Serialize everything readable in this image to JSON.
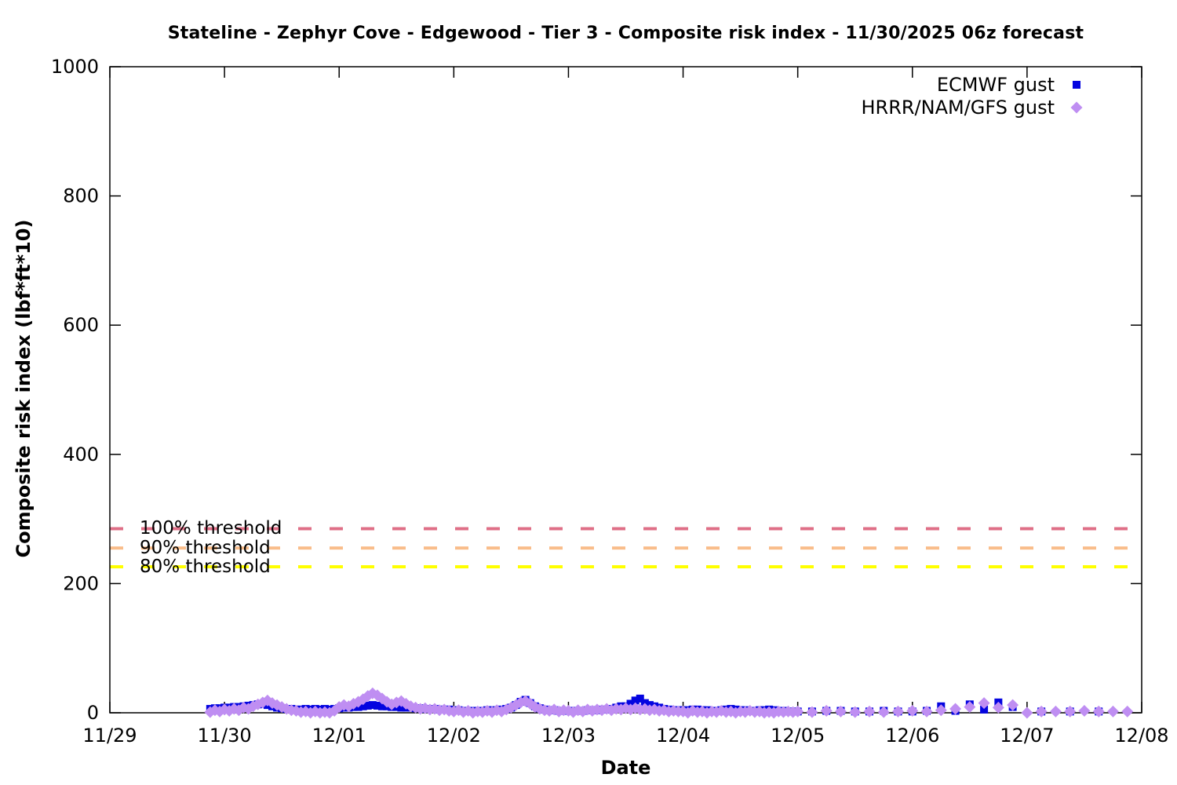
{
  "chart_data": {
    "type": "scatter",
    "title": "Stateline - Zephyr Cove - Edgewood - Tier 3 - Composite risk index - 11/30/2025 06z forecast",
    "xlabel": "Date",
    "ylabel": "Composite risk index (lbf*ft*10)",
    "xlim_days": [
      0,
      9
    ],
    "ylim": [
      0,
      1000
    ],
    "grid": false,
    "legend_position": "top-right-inside",
    "x_ticks": [
      {
        "t": 0,
        "label": "11/29"
      },
      {
        "t": 1,
        "label": "11/30"
      },
      {
        "t": 2,
        "label": "12/01"
      },
      {
        "t": 3,
        "label": "12/02"
      },
      {
        "t": 4,
        "label": "12/03"
      },
      {
        "t": 5,
        "label": "12/04"
      },
      {
        "t": 6,
        "label": "12/05"
      },
      {
        "t": 7,
        "label": "12/06"
      },
      {
        "t": 8,
        "label": "12/07"
      },
      {
        "t": 9,
        "label": "12/08"
      }
    ],
    "y_ticks": [
      0,
      200,
      400,
      600,
      800,
      1000
    ],
    "thresholds": [
      {
        "label": "100% threshold",
        "value": 285,
        "color": "#df6f87"
      },
      {
        "label": "90% threshold",
        "value": 255,
        "color": "#f9bd8a"
      },
      {
        "label": "80% threshold",
        "value": 226,
        "color": "#ffff00"
      }
    ],
    "x_unit_note": "points stored as [hours after 11/29 00z, value]",
    "series": [
      {
        "name": "ECMWF gust",
        "marker": "square",
        "color": "#0404e0",
        "points": [
          [
            21,
            6
          ],
          [
            22,
            7
          ],
          [
            23,
            7
          ],
          [
            24,
            8
          ],
          [
            25,
            8
          ],
          [
            26,
            9
          ],
          [
            27,
            9
          ],
          [
            28,
            10
          ],
          [
            29,
            11
          ],
          [
            30,
            12
          ],
          [
            31,
            13
          ],
          [
            32,
            14
          ],
          [
            33,
            12
          ],
          [
            34,
            10
          ],
          [
            35,
            8
          ],
          [
            36,
            7
          ],
          [
            37,
            6
          ],
          [
            38,
            6
          ],
          [
            39,
            5
          ],
          [
            40,
            5
          ],
          [
            41,
            6
          ],
          [
            42,
            5
          ],
          [
            43,
            6
          ],
          [
            44,
            5
          ],
          [
            45,
            6
          ],
          [
            46,
            5
          ],
          [
            47,
            6
          ],
          [
            48,
            7
          ],
          [
            49,
            8
          ],
          [
            50,
            8
          ],
          [
            51,
            9
          ],
          [
            52,
            9
          ],
          [
            53,
            10
          ],
          [
            54,
            11
          ],
          [
            55,
            12
          ],
          [
            56,
            11
          ],
          [
            57,
            10
          ],
          [
            58,
            10
          ],
          [
            59,
            9
          ],
          [
            60,
            9
          ],
          [
            61,
            8
          ],
          [
            62,
            8
          ],
          [
            63,
            8
          ],
          [
            64,
            7
          ],
          [
            65,
            7
          ],
          [
            66,
            6
          ],
          [
            67,
            6
          ],
          [
            68,
            6
          ],
          [
            69,
            5
          ],
          [
            70,
            5
          ],
          [
            71,
            5
          ],
          [
            72,
            4
          ],
          [
            73,
            4
          ],
          [
            74,
            3
          ],
          [
            75,
            3
          ],
          [
            76,
            3
          ],
          [
            77,
            3
          ],
          [
            78,
            3
          ],
          [
            79,
            4
          ],
          [
            80,
            4
          ],
          [
            81,
            4
          ],
          [
            82,
            5
          ],
          [
            83,
            6
          ],
          [
            84,
            8
          ],
          [
            85,
            12
          ],
          [
            86,
            17
          ],
          [
            87,
            20
          ],
          [
            88,
            15
          ],
          [
            89,
            10
          ],
          [
            90,
            7
          ],
          [
            91,
            5
          ],
          [
            92,
            4
          ],
          [
            93,
            4
          ],
          [
            94,
            3
          ],
          [
            95,
            3
          ],
          [
            96,
            3
          ],
          [
            97,
            3
          ],
          [
            98,
            3
          ],
          [
            99,
            3
          ],
          [
            100,
            4
          ],
          [
            101,
            4
          ],
          [
            102,
            4
          ],
          [
            103,
            5
          ],
          [
            104,
            5
          ],
          [
            105,
            6
          ],
          [
            106,
            8
          ],
          [
            107,
            10
          ],
          [
            108,
            10
          ],
          [
            109,
            14
          ],
          [
            110,
            19
          ],
          [
            111,
            22
          ],
          [
            112,
            15
          ],
          [
            113,
            12
          ],
          [
            114,
            10
          ],
          [
            115,
            8
          ],
          [
            116,
            6
          ],
          [
            117,
            5
          ],
          [
            118,
            4
          ],
          [
            119,
            4
          ],
          [
            120,
            4
          ],
          [
            121,
            4
          ],
          [
            122,
            5
          ],
          [
            123,
            5
          ],
          [
            124,
            4
          ],
          [
            125,
            4
          ],
          [
            126,
            3
          ],
          [
            127,
            3
          ],
          [
            128,
            4
          ],
          [
            129,
            5
          ],
          [
            130,
            6
          ],
          [
            131,
            5
          ],
          [
            132,
            4
          ],
          [
            133,
            4
          ],
          [
            134,
            3
          ],
          [
            135,
            3
          ],
          [
            136,
            4
          ],
          [
            137,
            4
          ],
          [
            138,
            5
          ],
          [
            139,
            4
          ],
          [
            140,
            3
          ],
          [
            141,
            3
          ],
          [
            142,
            2
          ],
          [
            143,
            2
          ],
          [
            144,
            2
          ],
          [
            147,
            2
          ],
          [
            150,
            3
          ],
          [
            153,
            3
          ],
          [
            156,
            2
          ],
          [
            159,
            2
          ],
          [
            162,
            3
          ],
          [
            165,
            2
          ],
          [
            168,
            2
          ],
          [
            171,
            3
          ],
          [
            174,
            10
          ],
          [
            177,
            3
          ],
          [
            180,
            13
          ],
          [
            183,
            5
          ],
          [
            186,
            16
          ],
          [
            189,
            9
          ],
          [
            195,
            2
          ],
          [
            201,
            2
          ],
          [
            207,
            2
          ]
        ]
      },
      {
        "name": "HRRR/NAM/GFS gust",
        "marker": "diamond",
        "color": "#bf8ef2",
        "points": [
          [
            21,
            1
          ],
          [
            22,
            4
          ],
          [
            23,
            2
          ],
          [
            24,
            5
          ],
          [
            25,
            3
          ],
          [
            26,
            6
          ],
          [
            27,
            4
          ],
          [
            28,
            8
          ],
          [
            29,
            6
          ],
          [
            30,
            10
          ],
          [
            31,
            13
          ],
          [
            32,
            16
          ],
          [
            33,
            19
          ],
          [
            34,
            15
          ],
          [
            35,
            12
          ],
          [
            36,
            9
          ],
          [
            37,
            6
          ],
          [
            38,
            4
          ],
          [
            39,
            3
          ],
          [
            40,
            1
          ],
          [
            41,
            2
          ],
          [
            42,
            0
          ],
          [
            43,
            2
          ],
          [
            44,
            0
          ],
          [
            45,
            1
          ],
          [
            46,
            0
          ],
          [
            47,
            3
          ],
          [
            48,
            9
          ],
          [
            49,
            12
          ],
          [
            50,
            10
          ],
          [
            51,
            14
          ],
          [
            52,
            17
          ],
          [
            53,
            21
          ],
          [
            54,
            26
          ],
          [
            55,
            30
          ],
          [
            56,
            27
          ],
          [
            57,
            22
          ],
          [
            58,
            17
          ],
          [
            59,
            13
          ],
          [
            60,
            16
          ],
          [
            61,
            18
          ],
          [
            62,
            14
          ],
          [
            63,
            10
          ],
          [
            64,
            8
          ],
          [
            65,
            6
          ],
          [
            66,
            7
          ],
          [
            67,
            5
          ],
          [
            68,
            6
          ],
          [
            69,
            4
          ],
          [
            70,
            5
          ],
          [
            71,
            3
          ],
          [
            72,
            2
          ],
          [
            73,
            4
          ],
          [
            74,
            1
          ],
          [
            75,
            3
          ],
          [
            76,
            0
          ],
          [
            77,
            2
          ],
          [
            78,
            1
          ],
          [
            79,
            3
          ],
          [
            80,
            1
          ],
          [
            81,
            4
          ],
          [
            82,
            2
          ],
          [
            83,
            5
          ],
          [
            84,
            8
          ],
          [
            85,
            12
          ],
          [
            86,
            16
          ],
          [
            87,
            18
          ],
          [
            88,
            14
          ],
          [
            89,
            9
          ],
          [
            90,
            6
          ],
          [
            91,
            4
          ],
          [
            92,
            3
          ],
          [
            93,
            5
          ],
          [
            94,
            2
          ],
          [
            95,
            4
          ],
          [
            96,
            3
          ],
          [
            97,
            1
          ],
          [
            98,
            4
          ],
          [
            99,
            2
          ],
          [
            100,
            5
          ],
          [
            101,
            3
          ],
          [
            102,
            5
          ],
          [
            103,
            4
          ],
          [
            104,
            6
          ],
          [
            105,
            4
          ],
          [
            106,
            6
          ],
          [
            107,
            5
          ],
          [
            108,
            7
          ],
          [
            109,
            5
          ],
          [
            110,
            7
          ],
          [
            111,
            5
          ],
          [
            112,
            6
          ],
          [
            113,
            4
          ],
          [
            114,
            5
          ],
          [
            115,
            3
          ],
          [
            116,
            4
          ],
          [
            117,
            2
          ],
          [
            118,
            3
          ],
          [
            119,
            2
          ],
          [
            120,
            2
          ],
          [
            121,
            0
          ],
          [
            122,
            3
          ],
          [
            123,
            1
          ],
          [
            124,
            2
          ],
          [
            125,
            0
          ],
          [
            126,
            2
          ],
          [
            127,
            1
          ],
          [
            128,
            3
          ],
          [
            129,
            1
          ],
          [
            130,
            2
          ],
          [
            131,
            0
          ],
          [
            132,
            2
          ],
          [
            133,
            1
          ],
          [
            134,
            3
          ],
          [
            135,
            1
          ],
          [
            136,
            2
          ],
          [
            137,
            0
          ],
          [
            138,
            1
          ],
          [
            139,
            0
          ],
          [
            140,
            2
          ],
          [
            141,
            1
          ],
          [
            142,
            2
          ],
          [
            143,
            1
          ],
          [
            144,
            2
          ],
          [
            147,
            1
          ],
          [
            150,
            3
          ],
          [
            153,
            2
          ],
          [
            156,
            1
          ],
          [
            159,
            2
          ],
          [
            162,
            1
          ],
          [
            165,
            2
          ],
          [
            168,
            3
          ],
          [
            171,
            2
          ],
          [
            174,
            4
          ],
          [
            177,
            6
          ],
          [
            180,
            9
          ],
          [
            183,
            15
          ],
          [
            186,
            8
          ],
          [
            189,
            12
          ],
          [
            192,
            0
          ],
          [
            195,
            2
          ],
          [
            198,
            2
          ],
          [
            201,
            2
          ],
          [
            204,
            3
          ],
          [
            207,
            2
          ],
          [
            210,
            2
          ],
          [
            213,
            2
          ]
        ]
      }
    ]
  }
}
